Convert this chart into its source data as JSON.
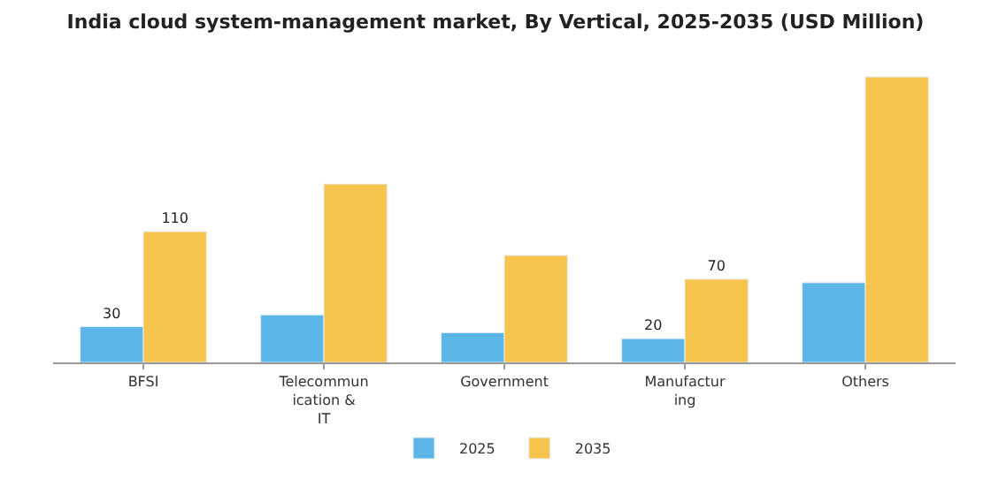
{
  "chart_data": {
    "type": "bar",
    "title": "India cloud system-management market, By Vertical, 2025-2035 (USD Million)",
    "categories": [
      "BFSI",
      "Telecommun\nication &\nIT",
      "Government",
      "Manufactur\ning",
      "Others"
    ],
    "series": [
      {
        "name": "2025",
        "color": "#5bb5e6",
        "values": [
          30,
          40,
          25,
          20,
          67
        ],
        "value_labels": [
          "30",
          null,
          null,
          "20",
          null
        ]
      },
      {
        "name": "2035",
        "color": "#f7c54e",
        "values": [
          110,
          150,
          90,
          70,
          240
        ],
        "value_labels": [
          "110",
          null,
          null,
          "70",
          null
        ]
      }
    ],
    "legend": "bottom"
  }
}
